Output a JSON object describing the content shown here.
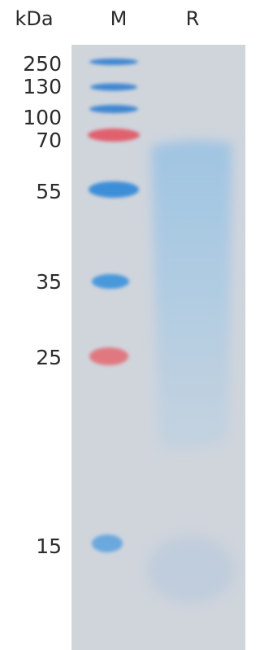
{
  "header": {
    "unit": "kDa",
    "lanes": [
      "M",
      "R"
    ]
  },
  "markers": [
    "250",
    "130",
    "100",
    "70",
    "55",
    "35",
    "25",
    "15"
  ]
}
